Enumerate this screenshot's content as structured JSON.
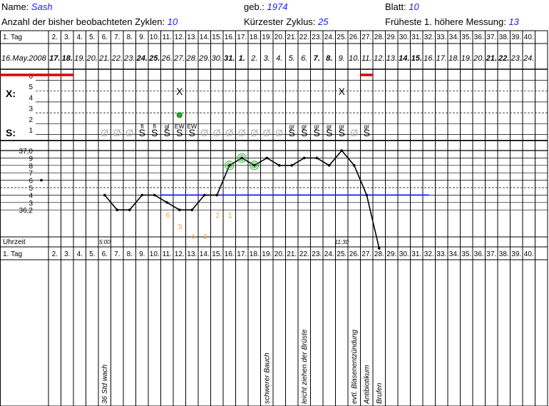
{
  "header": {
    "name_label": "Name:",
    "name_value": "Sash",
    "born_label": "geb.:",
    "born_value": "1974",
    "sheet_label": "Blatt:",
    "sheet_value": "10",
    "cycles_label": "Anzahl der bisher beobachteten Zyklen:",
    "cycles_value": "10",
    "shortest_label": "Kürzester Zyklus:",
    "shortest_value": "25",
    "earliest_label": "Früheste 1. höhere Messung:",
    "earliest_value": "13"
  },
  "chart_data": {
    "type": "line",
    "day_label": "1. Tag",
    "uhrzeit_label": "Uhrzeit",
    "days": [
      "1",
      "2.",
      "3.",
      "4.",
      "5.",
      "6.",
      "7.",
      "8.",
      "9.",
      "10.",
      "11.",
      "12.",
      "13.",
      "14.",
      "15.",
      "16.",
      "17.",
      "18.",
      "19.",
      "20.",
      "21.",
      "22.",
      "23.",
      "24.",
      "25.",
      "26.",
      "27.",
      "28.",
      "29.",
      "30.",
      "31.",
      "32.",
      "33.",
      "34.",
      "35.",
      "36.",
      "37.",
      "38.",
      "39.",
      "40."
    ],
    "dates": [
      {
        "t": "16.May.2008",
        "b": false
      },
      {
        "t": "17.",
        "b": true
      },
      {
        "t": "18.",
        "b": true
      },
      {
        "t": "19.",
        "b": false
      },
      {
        "t": "20.",
        "b": false
      },
      {
        "t": "21.",
        "b": false
      },
      {
        "t": "22.",
        "b": false
      },
      {
        "t": "23.",
        "b": false
      },
      {
        "t": "24.",
        "b": true
      },
      {
        "t": "25.",
        "b": true
      },
      {
        "t": "26.",
        "b": false
      },
      {
        "t": "27.",
        "b": false
      },
      {
        "t": "28.",
        "b": false
      },
      {
        "t": "29.",
        "b": false
      },
      {
        "t": "30.",
        "b": false
      },
      {
        "t": "31.",
        "b": true
      },
      {
        "t": "1.",
        "b": true
      },
      {
        "t": "2.",
        "b": false
      },
      {
        "t": "3.",
        "b": false
      },
      {
        "t": "4.",
        "b": false
      },
      {
        "t": "5.",
        "b": false
      },
      {
        "t": "6.",
        "b": false
      },
      {
        "t": "7.",
        "b": true
      },
      {
        "t": "8.",
        "b": true
      },
      {
        "t": "9.",
        "b": false
      },
      {
        "t": "10.",
        "b": false
      },
      {
        "t": "11.",
        "b": false
      },
      {
        "t": "12.",
        "b": false
      },
      {
        "t": "13.",
        "b": false
      },
      {
        "t": "14.",
        "b": true
      },
      {
        "t": "15.",
        "b": true
      },
      {
        "t": "16.",
        "b": false
      },
      {
        "t": "17.",
        "b": false
      },
      {
        "t": "18.",
        "b": false
      },
      {
        "t": "19.",
        "b": false
      },
      {
        "t": "20.",
        "b": false
      },
      {
        "t": "21.",
        "b": true
      },
      {
        "t": "22.",
        "b": true
      },
      {
        "t": "23.",
        "b": false
      },
      {
        "t": "24.",
        "b": false
      }
    ],
    "bleeding_label_ticks": [
      "6",
      "5",
      "4",
      "3",
      "2",
      "1"
    ],
    "bleeding": [
      {
        "day": 1,
        "v": 6
      },
      {
        "day": 2,
        "v": 6
      },
      {
        "day": 3,
        "v": 6
      },
      {
        "day": 27,
        "v": 6
      }
    ],
    "cervix_label": "X:",
    "cervix_marks": [
      {
        "day": 12,
        "v": 4.5,
        "text": "X"
      },
      {
        "day": 25,
        "v": 4.5,
        "text": "X"
      }
    ],
    "green_dot": {
      "day": 12,
      "v": 2.3
    },
    "mucus_label": "S:",
    "mucus": [
      {
        "day": 6,
        "s": "Ø",
        "top": "",
        "grey": true
      },
      {
        "day": 7,
        "s": "Ø",
        "top": "",
        "grey": true
      },
      {
        "day": 8,
        "s": "Ø",
        "top": "",
        "grey": true
      },
      {
        "day": 9,
        "s": "S",
        "top": "fl",
        "grey": false
      },
      {
        "day": 10,
        "s": "S",
        "top": "fl",
        "grey": false
      },
      {
        "day": 11,
        "s": "S",
        "top": "gl",
        "grey": false
      },
      {
        "day": 12,
        "s": "S",
        "top": "EW",
        "grey": false
      },
      {
        "day": 13,
        "s": "S",
        "top": "EW",
        "grey": false
      },
      {
        "day": 14,
        "s": "Ø",
        "top": "",
        "grey": true
      },
      {
        "day": 15,
        "s": "Ø",
        "top": "",
        "grey": true
      },
      {
        "day": 16,
        "s": "Ø",
        "top": "",
        "grey": true
      },
      {
        "day": 17,
        "s": "Ø",
        "top": "",
        "grey": true
      },
      {
        "day": 18,
        "s": "Ø",
        "top": "",
        "grey": true
      },
      {
        "day": 19,
        "s": "Ø",
        "top": "",
        "grey": true
      },
      {
        "day": 20,
        "s": "Ø",
        "top": "",
        "grey": true
      },
      {
        "day": 21,
        "s": "S",
        "top": "gr",
        "grey": false
      },
      {
        "day": 22,
        "s": "S",
        "top": "gr",
        "grey": false
      },
      {
        "day": 23,
        "s": "S",
        "top": "gr",
        "grey": false
      },
      {
        "day": 24,
        "s": "S",
        "top": "gr",
        "grey": false
      },
      {
        "day": 25,
        "s": "S",
        "top": "gr",
        "grey": false
      },
      {
        "day": 26,
        "s": "Ø",
        "top": "",
        "grey": true
      },
      {
        "day": 27,
        "s": "S",
        "top": "gr",
        "grey": false
      }
    ],
    "temp_ticks": [
      "37,0",
      "9",
      "8",
      "7",
      "6",
      "5",
      "4",
      "3",
      "36,2"
    ],
    "temp_tick_values": [
      37.0,
      36.9,
      36.8,
      36.7,
      36.6,
      36.5,
      36.4,
      36.3,
      36.2
    ],
    "ylim": [
      36.15,
      37.05
    ],
    "temperatures": [
      {
        "day": 1,
        "v": 36.6
      },
      {
        "day": 6,
        "v": 36.4
      },
      {
        "day": 7,
        "v": 36.2
      },
      {
        "day": 8,
        "v": 36.2
      },
      {
        "day": 9,
        "v": 36.4
      },
      {
        "day": 10,
        "v": 36.4
      },
      {
        "day": 11,
        "v": 36.3
      },
      {
        "day": 12,
        "v": 36.2
      },
      {
        "day": 13,
        "v": 36.2
      },
      {
        "day": 14,
        "v": 36.4
      },
      {
        "day": 15,
        "v": 36.4
      },
      {
        "day": 16,
        "v": 36.8
      },
      {
        "day": 17,
        "v": 36.9
      },
      {
        "day": 18,
        "v": 36.8
      },
      {
        "day": 19,
        "v": 36.9
      },
      {
        "day": 20,
        "v": 36.8
      },
      {
        "day": 21,
        "v": 36.8
      },
      {
        "day": 22,
        "v": 36.9
      },
      {
        "day": 23,
        "v": 36.9
      },
      {
        "day": 24,
        "v": 36.8
      },
      {
        "day": 25,
        "v": 37.0
      },
      {
        "day": 26,
        "v": 36.8
      },
      {
        "day": 27,
        "v": 36.4
      },
      {
        "day": 28,
        "v": 35.9
      }
    ],
    "circled_points": [
      16,
      17,
      18
    ],
    "coverline": {
      "v": 36.4,
      "from_day": 11,
      "to_day": 32
    },
    "coverline_color": "#1a1aff",
    "curve_color": "#000000",
    "count_labels": [
      {
        "day": 11,
        "text": "6"
      },
      {
        "day": 12,
        "text": "5"
      },
      {
        "day": 13,
        "text": "4"
      },
      {
        "day": 14,
        "text": "3"
      },
      {
        "day": 15,
        "text": "2"
      },
      {
        "day": 16,
        "text": "1"
      }
    ],
    "count_color": "#f0a040",
    "times": [
      {
        "day": 6,
        "text": "5:00"
      },
      {
        "day": 25,
        "text": "11:30"
      }
    ],
    "notes": [
      {
        "day": 6,
        "text": "36 Std wach"
      },
      {
        "day": 19,
        "text": "schwerer Bauch"
      },
      {
        "day": 22,
        "text": "leicht ziehen der Brüste"
      },
      {
        "day": 26,
        "text": "evtl. Blasenentzündung"
      },
      {
        "day": 27,
        "text": "Antibiotikum"
      },
      {
        "day": 28,
        "text": "Brufen"
      }
    ]
  }
}
